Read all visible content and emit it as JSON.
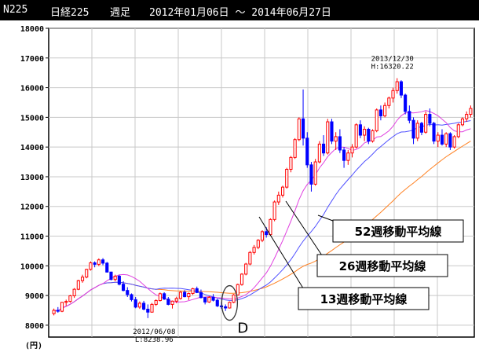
{
  "header": {
    "code": "N225",
    "name": "日経225",
    "period": "週足",
    "range": "2012年01月06日 ～ 2014年06月27日",
    "bg": "#000000",
    "fg": "#ffffff"
  },
  "chart_data": {
    "type": "candlestick",
    "ylabel": "(円)",
    "ylim": [
      7600,
      18000
    ],
    "yticks": [
      8000,
      9000,
      10000,
      11000,
      12000,
      13000,
      14000,
      15000,
      16000,
      17000,
      18000
    ],
    "grid": true,
    "up_color": "#ff0000",
    "down_color": "#0000ff",
    "ma_colors": {
      "ma13": "#e040e0",
      "ma26": "#5050ff",
      "ma52": "#ff8020"
    },
    "candles": [
      [
        8390,
        8560,
        8330,
        8500
      ],
      [
        8500,
        8610,
        8420,
        8470
      ],
      [
        8470,
        8780,
        8440,
        8770
      ],
      [
        8770,
        8860,
        8650,
        8800
      ],
      [
        8800,
        9020,
        8760,
        8990
      ],
      [
        8990,
        9250,
        8920,
        9210
      ],
      [
        9210,
        9530,
        9180,
        9500
      ],
      [
        9500,
        9700,
        9430,
        9620
      ],
      [
        9620,
        9900,
        9580,
        9880
      ],
      [
        9880,
        10150,
        9840,
        10100
      ],
      [
        10100,
        10150,
        9950,
        10050
      ],
      [
        10050,
        10250,
        9990,
        10200
      ],
      [
        10200,
        10260,
        10020,
        10090
      ],
      [
        10090,
        10130,
        9770,
        9790
      ],
      [
        9790,
        9800,
        9510,
        9540
      ],
      [
        9540,
        9700,
        9480,
        9650
      ],
      [
        9650,
        9700,
        9340,
        9380
      ],
      [
        9380,
        9480,
        9140,
        9170
      ],
      [
        9170,
        9280,
        8950,
        9030
      ],
      [
        9030,
        9070,
        8800,
        8860
      ],
      [
        8860,
        8950,
        8570,
        8610
      ],
      [
        8610,
        8800,
        8550,
        8740
      ],
      [
        8740,
        8820,
        8500,
        8540
      ],
      [
        8540,
        8700,
        8238.96,
        8440
      ],
      [
        8440,
        8750,
        8420,
        8700
      ],
      [
        8700,
        8870,
        8650,
        8830
      ],
      [
        8830,
        9100,
        8800,
        9060
      ],
      [
        9060,
        9110,
        8850,
        8880
      ],
      [
        8880,
        8950,
        8670,
        8700
      ],
      [
        8700,
        8830,
        8560,
        8810
      ],
      [
        8810,
        8960,
        8740,
        8900
      ],
      [
        8900,
        9150,
        8860,
        9110
      ],
      [
        9110,
        9180,
        8940,
        8960
      ],
      [
        8960,
        9100,
        8850,
        9070
      ],
      [
        9070,
        9260,
        9020,
        9230
      ],
      [
        9230,
        9300,
        9080,
        9100
      ],
      [
        9100,
        9200,
        8900,
        8930
      ],
      [
        8930,
        8950,
        8700,
        8780
      ],
      [
        8780,
        8980,
        8750,
        8940
      ],
      [
        8940,
        9050,
        8800,
        8840
      ],
      [
        8840,
        8900,
        8610,
        8650
      ],
      [
        8650,
        8780,
        8550,
        8620
      ],
      [
        8620,
        8700,
        8480,
        8580
      ],
      [
        8580,
        8800,
        8560,
        8770
      ],
      [
        8770,
        9050,
        8740,
        9020
      ],
      [
        9020,
        9400,
        9000,
        9370
      ],
      [
        9370,
        9750,
        9330,
        9720
      ],
      [
        9720,
        10100,
        9680,
        10060
      ],
      [
        10060,
        10500,
        10020,
        10450
      ],
      [
        10450,
        10700,
        10380,
        10620
      ],
      [
        10620,
        10900,
        10560,
        10860
      ],
      [
        10860,
        11200,
        10800,
        11150
      ],
      [
        11150,
        11300,
        10950,
        11050
      ],
      [
        11050,
        11600,
        11010,
        11560
      ],
      [
        11560,
        12200,
        11500,
        12150
      ],
      [
        12150,
        12500,
        12050,
        12380
      ],
      [
        12380,
        12700,
        12300,
        12650
      ],
      [
        12650,
        13300,
        12600,
        13250
      ],
      [
        13250,
        13700,
        13150,
        13650
      ],
      [
        13650,
        14300,
        13600,
        14250
      ],
      [
        14250,
        15000,
        14200,
        14950
      ],
      [
        14950,
        15940,
        14050,
        14300
      ],
      [
        14300,
        14500,
        13300,
        13400
      ],
      [
        13400,
        13500,
        12500,
        12750
      ],
      [
        12750,
        13600,
        12700,
        13500
      ],
      [
        13500,
        14200,
        13450,
        14100
      ],
      [
        14100,
        14400,
        13700,
        13800
      ],
      [
        13800,
        14950,
        13750,
        14850
      ],
      [
        14850,
        14950,
        14100,
        14200
      ],
      [
        14200,
        14500,
        13900,
        14350
      ],
      [
        14350,
        14600,
        13800,
        13900
      ],
      [
        13900,
        14000,
        13300,
        13550
      ],
      [
        13550,
        13900,
        13400,
        13800
      ],
      [
        13800,
        14100,
        13650,
        14000
      ],
      [
        14000,
        14800,
        13950,
        14750
      ],
      [
        14750,
        14900,
        14300,
        14400
      ],
      [
        14400,
        14700,
        14200,
        14600
      ],
      [
        14600,
        14650,
        14100,
        14200
      ],
      [
        14200,
        14600,
        14150,
        14550
      ],
      [
        14550,
        15300,
        14500,
        15250
      ],
      [
        15250,
        15400,
        14900,
        15050
      ],
      [
        15050,
        15500,
        15000,
        15400
      ],
      [
        15400,
        15700,
        15300,
        15650
      ],
      [
        15650,
        16000,
        15500,
        15900
      ],
      [
        15900,
        16320.22,
        15800,
        16200
      ],
      [
        16200,
        16250,
        15650,
        15750
      ],
      [
        15750,
        15800,
        15100,
        15200
      ],
      [
        15200,
        15400,
        14800,
        14900
      ],
      [
        14900,
        15000,
        14100,
        14300
      ],
      [
        14300,
        14900,
        14200,
        14800
      ],
      [
        14800,
        14850,
        14400,
        14500
      ],
      [
        14500,
        15200,
        14450,
        15100
      ],
      [
        15100,
        15300,
        14700,
        14800
      ],
      [
        14800,
        14850,
        14100,
        14200
      ],
      [
        14200,
        14500,
        14000,
        14400
      ],
      [
        14400,
        14600,
        14050,
        14100
      ],
      [
        14100,
        14500,
        14000,
        14450
      ],
      [
        14450,
        14500,
        13900,
        14000
      ],
      [
        14000,
        14400,
        13950,
        14350
      ],
      [
        14350,
        14800,
        14300,
        14750
      ],
      [
        14750,
        15000,
        14700,
        14950
      ],
      [
        14950,
        15200,
        14850,
        15100
      ],
      [
        15100,
        15400,
        15000,
        15300
      ]
    ],
    "annotations": [
      {
        "text": "2013/12/30",
        "text2": "H:16320.22",
        "index": 84
      },
      {
        "text": "2012/06/08",
        "text2": "L:8238.96",
        "index": 23
      }
    ],
    "callouts": {
      "d_mark": "D",
      "ma52_label": "52週移動平均線",
      "ma26_label": "26週移動平均線",
      "ma13_label": "13週移動平均線"
    }
  }
}
